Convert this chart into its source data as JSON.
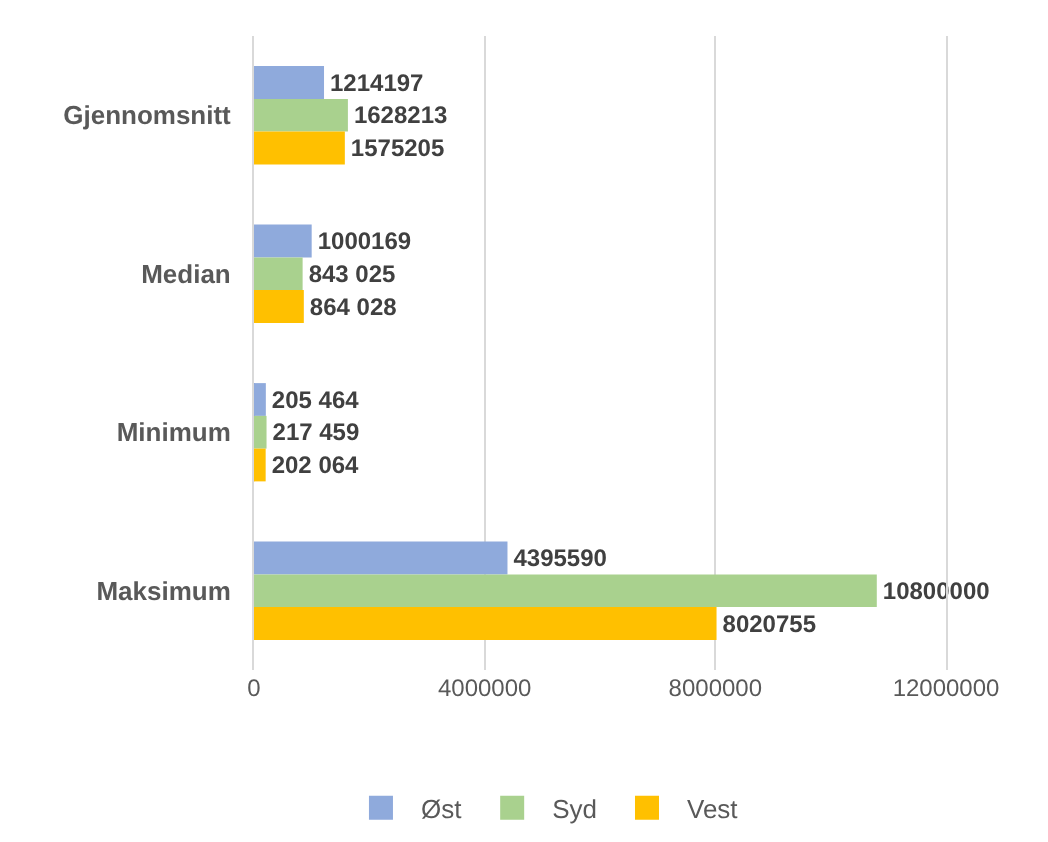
{
  "chart_data": {
    "type": "bar",
    "orientation": "horizontal",
    "categories": [
      "Gjennomsnitt",
      "Median",
      "Minimum",
      "Maksimum"
    ],
    "series": [
      {
        "name": "Øst",
        "color": "#8faadc",
        "values": [
          1214197,
          1000169,
          205464,
          4395590
        ],
        "value_labels": [
          "1214197",
          "1000169",
          "205 464",
          "4395590"
        ]
      },
      {
        "name": "Syd",
        "color": "#a9d18e",
        "values": [
          1628213,
          843025,
          217459,
          10800000
        ],
        "value_labels": [
          "1628213",
          "843 025",
          "217 459",
          "10800000"
        ]
      },
      {
        "name": "Vest",
        "color": "#ffc000",
        "values": [
          1575205,
          864028,
          202064,
          8020755
        ],
        "value_labels": [
          "1575205",
          "864 028",
          "202 064",
          "8020755"
        ]
      }
    ],
    "xlim": [
      0,
      12000000
    ],
    "xticks": [
      0,
      4000000,
      8000000,
      12000000
    ],
    "grid": "x",
    "legend": "bottom"
  }
}
